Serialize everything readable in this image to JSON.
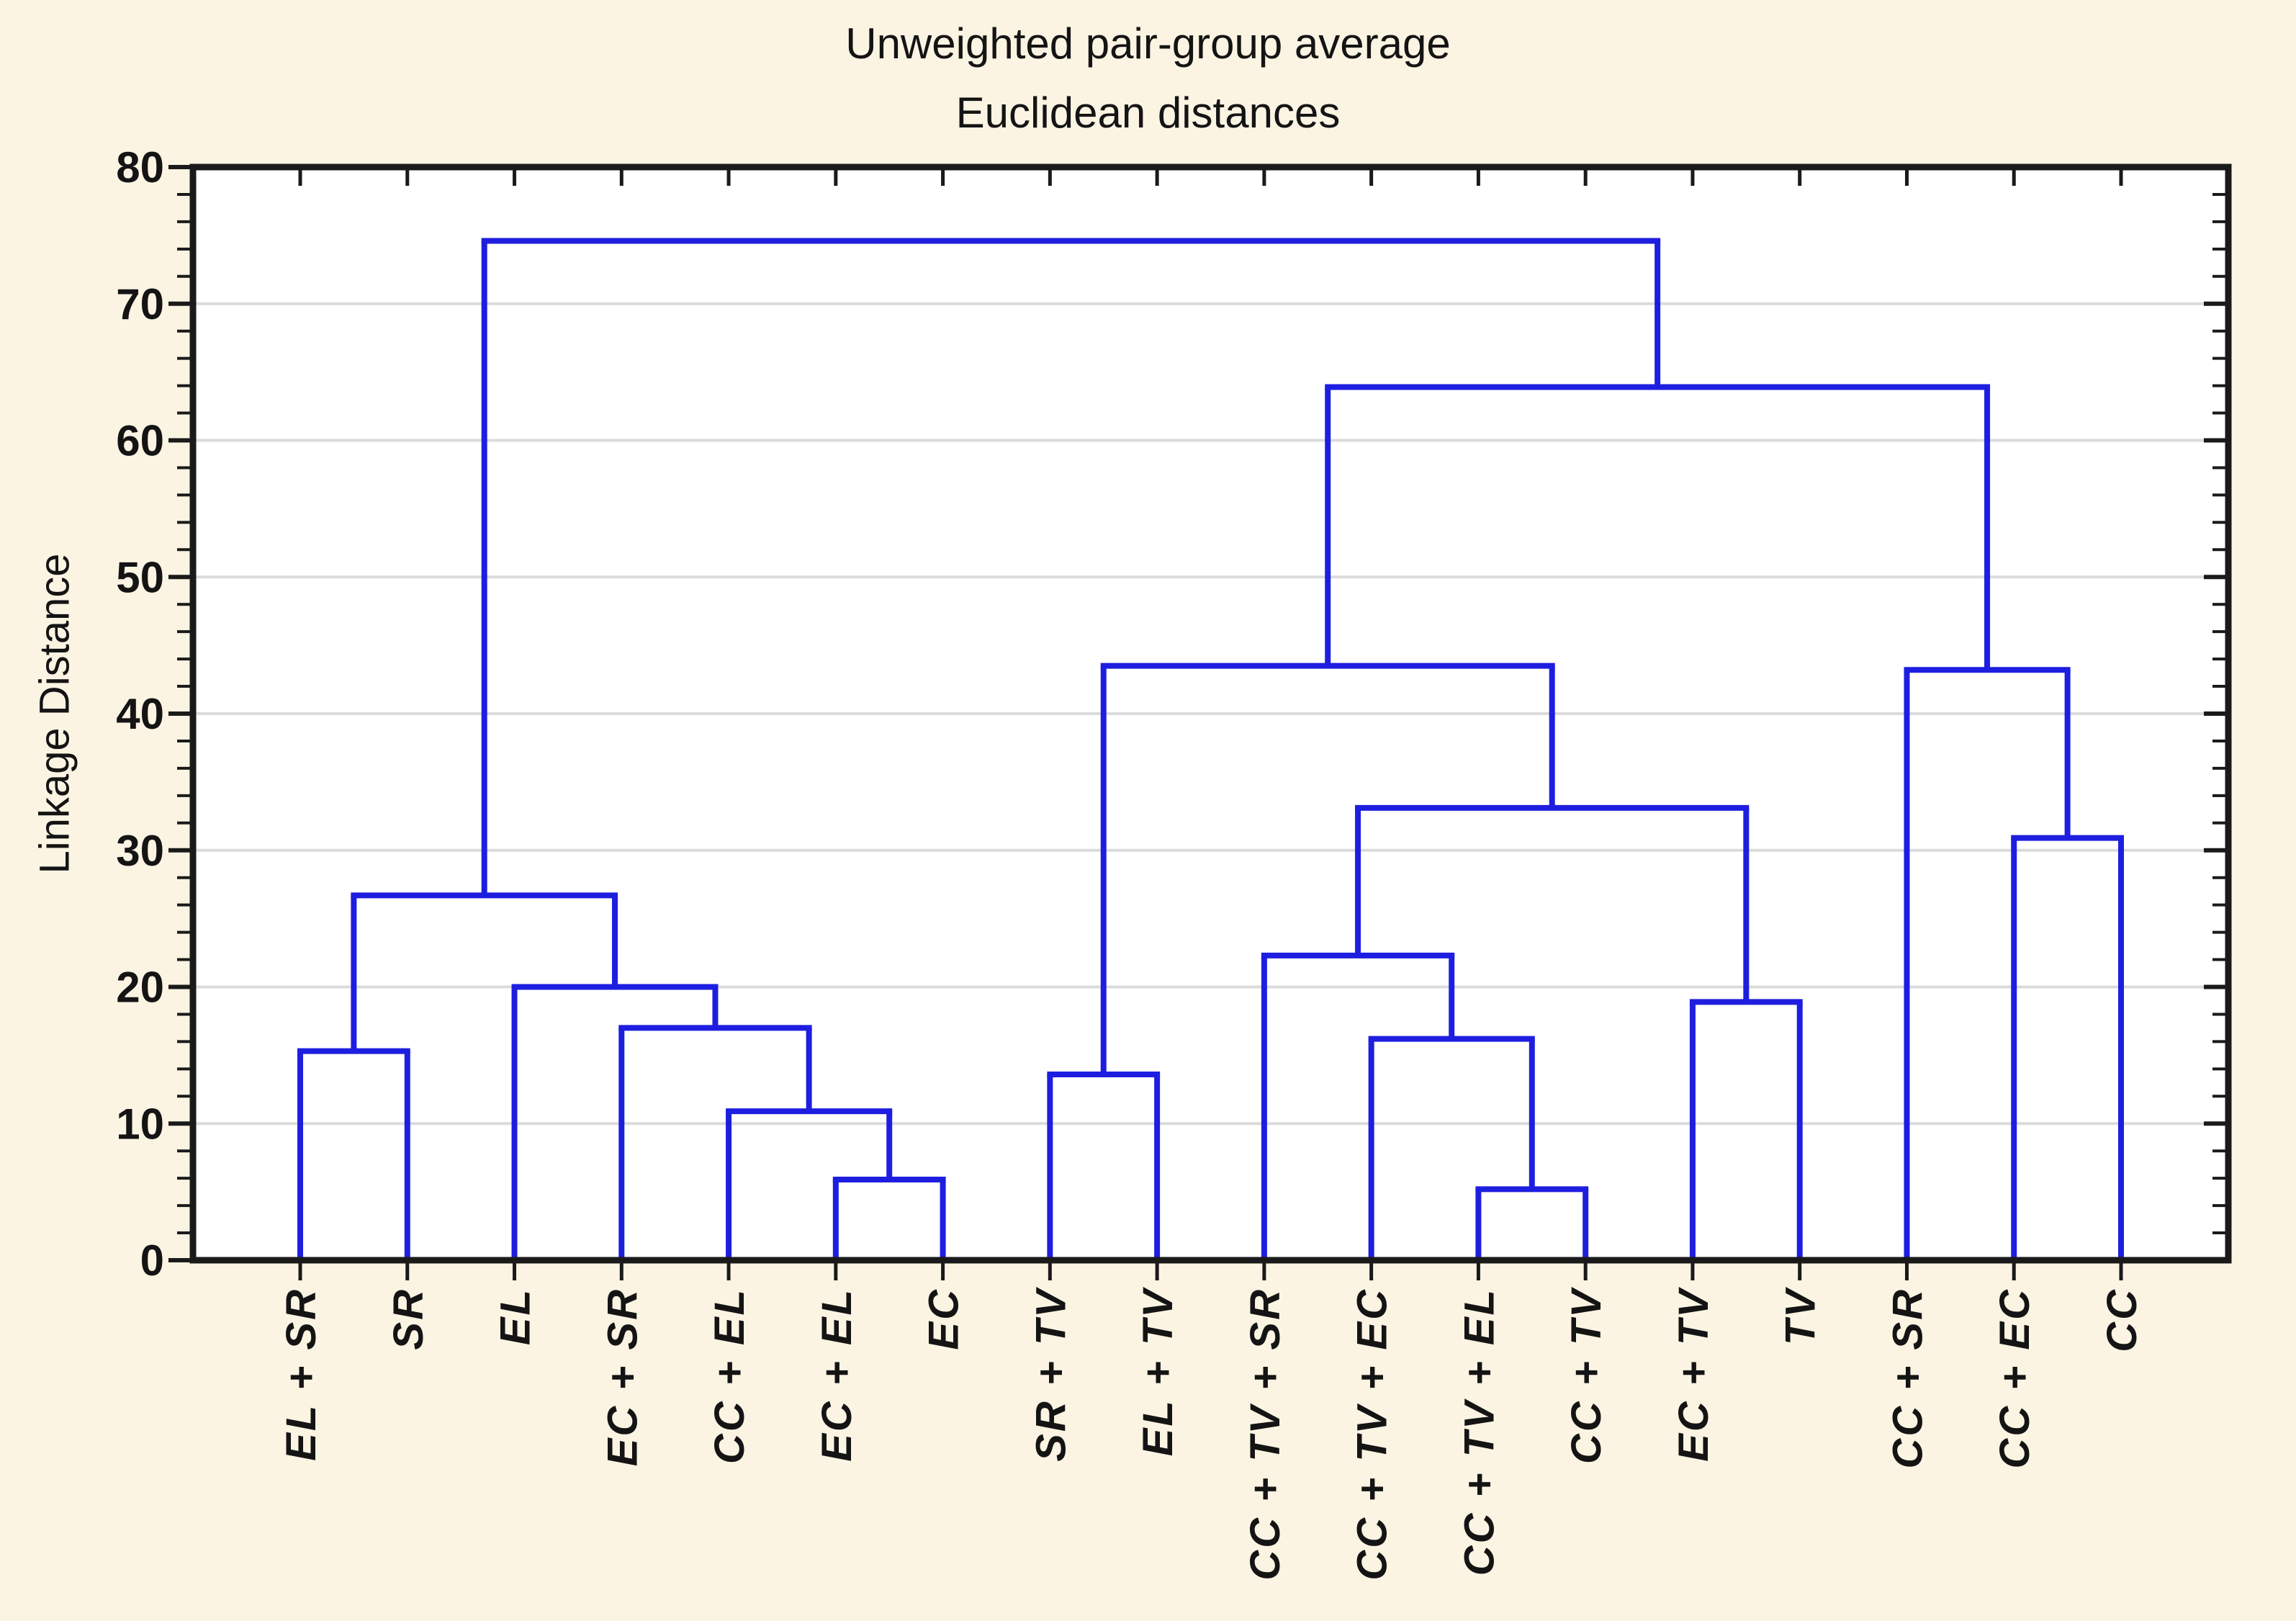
{
  "page": {
    "background": "#FBF4E3"
  },
  "chart_data": {
    "type": "dendrogram",
    "title": "Unweighted pair-group average",
    "subtitle": "Euclidean distances",
    "ylabel": "Linkage Distance",
    "xlabel": "",
    "ylim": [
      0,
      80
    ],
    "ytick_major_step": 10,
    "ytick_minor_step": 2,
    "ytick_labels": [
      "0",
      "10",
      "20",
      "30",
      "40",
      "50",
      "60",
      "70",
      "80"
    ],
    "grid": "horizontal-major",
    "legend": "none",
    "colors": {
      "link": "#1E1EE0",
      "grid": "#DBDBDB",
      "frame": "#1A1A1A",
      "plot_bg": "#FFFFFF",
      "text": "#141414"
    },
    "leaves": [
      "EL + SR",
      "SR",
      "EL",
      "EC + SR",
      "CC + EL",
      "EC + EL",
      "EC",
      "SR + TV",
      "EL + TV",
      "CC + TV + SR",
      "CC + TV + EC",
      "CC + TV + EL",
      "CC + TV",
      "EC + TV",
      "TV",
      "CC + SR",
      "CC + EC",
      "CC"
    ],
    "tree": {
      "h": 74.6,
      "c": [
        {
          "h": 26.7,
          "c": [
            {
              "h": 15.3,
              "c": [
                "EL + SR",
                "SR"
              ]
            },
            {
              "h": 20.0,
              "c": [
                "EL",
                {
                  "h": 17.0,
                  "c": [
                    "EC + SR",
                    {
                      "h": 10.9,
                      "c": [
                        "CC + EL",
                        {
                          "h": 5.9,
                          "c": [
                            "EC + EL",
                            "EC"
                          ]
                        }
                      ]
                    }
                  ]
                }
              ]
            }
          ]
        },
        {
          "h": 63.9,
          "c": [
            {
              "h": 43.5,
              "c": [
                {
                  "h": 13.6,
                  "c": [
                    "SR + TV",
                    "EL + TV"
                  ]
                },
                {
                  "h": 33.1,
                  "c": [
                    {
                      "h": 22.3,
                      "c": [
                        "CC + TV + SR",
                        {
                          "h": 16.2,
                          "c": [
                            "CC + TV + EC",
                            {
                              "h": 5.2,
                              "c": [
                                "CC + TV + EL",
                                "CC + TV"
                              ]
                            }
                          ]
                        }
                      ]
                    },
                    {
                      "h": 18.9,
                      "c": [
                        "EC + TV",
                        "TV"
                      ]
                    }
                  ]
                }
              ]
            },
            {
              "h": 43.2,
              "c": [
                "CC + SR",
                {
                  "h": 30.9,
                  "c": [
                    "CC + EC",
                    "CC"
                  ]
                }
              ]
            }
          ]
        }
      ]
    }
  }
}
